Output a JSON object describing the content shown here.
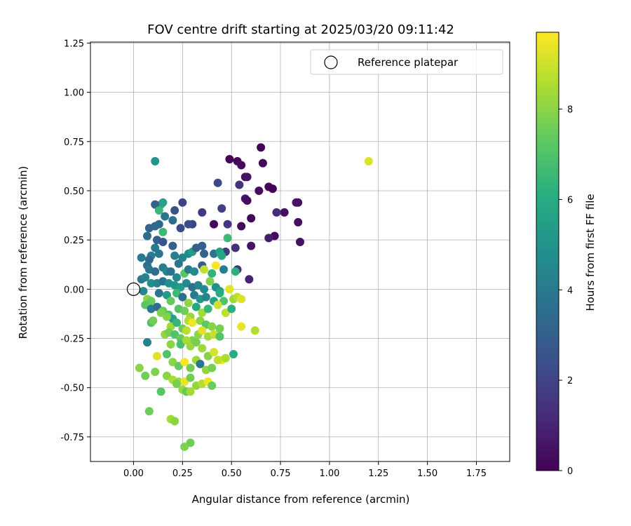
{
  "chart_data": {
    "type": "scatter",
    "title": "FOV centre drift starting at 2025/03/20 09:11:42",
    "xlabel": "Angular distance from reference (arcmin)",
    "ylabel": "Rotation from reference (arcmin)",
    "xlim": [
      -0.22,
      1.92
    ],
    "ylim": [
      -0.875,
      1.255
    ],
    "xticks": [
      "0.00",
      "0.25",
      "0.50",
      "0.75",
      "1.00",
      "1.25",
      "1.50",
      "1.75"
    ],
    "yticks": [
      "-0.75",
      "-0.50",
      "-0.25",
      "0.00",
      "0.25",
      "0.50",
      "0.75",
      "1.00",
      "1.25"
    ],
    "grid": true,
    "legend": {
      "position": "top-right",
      "entries": [
        "Reference platepar"
      ]
    },
    "reference_point": {
      "x": 0.0,
      "y": 0.0
    },
    "colorbar": {
      "label": "Hours from first FF file",
      "colormap": "viridis",
      "range": [
        0,
        9.7
      ],
      "ticks": [
        "0",
        "2",
        "4",
        "6",
        "8"
      ]
    },
    "points": [
      [
        0.49,
        0.66,
        0.1
      ],
      [
        0.53,
        0.65,
        0.2
      ],
      [
        0.55,
        0.63,
        0.3
      ],
      [
        0.65,
        0.72,
        0.1
      ],
      [
        0.66,
        0.64,
        0.2
      ],
      [
        0.57,
        0.57,
        0.4
      ],
      [
        0.58,
        0.57,
        0.5
      ],
      [
        0.64,
        0.5,
        0.3
      ],
      [
        0.69,
        0.52,
        0.2
      ],
      [
        0.71,
        0.51,
        0.1
      ],
      [
        0.57,
        0.46,
        0.6
      ],
      [
        0.58,
        0.45,
        0.3
      ],
      [
        0.77,
        0.39,
        0.4
      ],
      [
        0.73,
        0.39,
        1.2
      ],
      [
        0.83,
        0.44,
        0.7
      ],
      [
        0.84,
        0.44,
        0.5
      ],
      [
        0.84,
        0.34,
        0.4
      ],
      [
        0.85,
        0.24,
        0.5
      ],
      [
        0.72,
        0.27,
        0.3
      ],
      [
        0.69,
        0.26,
        0.8
      ],
      [
        0.6,
        0.36,
        0.2
      ],
      [
        0.55,
        0.32,
        0.3
      ],
      [
        0.41,
        0.33,
        0.2
      ],
      [
        0.48,
        0.33,
        1.5
      ],
      [
        0.45,
        0.41,
        1.8
      ],
      [
        0.43,
        0.54,
        2.2
      ],
      [
        0.54,
        0.53,
        1.4
      ],
      [
        0.52,
        0.21,
        1.3
      ],
      [
        0.6,
        0.22,
        0.6
      ],
      [
        0.47,
        0.19,
        1.7
      ],
      [
        0.59,
        0.05,
        1.0
      ],
      [
        0.53,
        0.1,
        1.4
      ],
      [
        0.35,
        0.39,
        1.6
      ],
      [
        0.3,
        0.33,
        1.9
      ],
      [
        0.28,
        0.33,
        2.3
      ],
      [
        0.25,
        0.44,
        2.0
      ],
      [
        0.21,
        0.4,
        2.5
      ],
      [
        0.24,
        0.31,
        2.2
      ],
      [
        0.2,
        0.35,
        3.6
      ],
      [
        0.14,
        0.43,
        6.0
      ],
      [
        0.15,
        0.44,
        5.7
      ],
      [
        0.11,
        0.43,
        3.0
      ],
      [
        0.11,
        0.65,
        5.0
      ],
      [
        0.13,
        0.4,
        6.5
      ],
      [
        0.16,
        0.37,
        3.8
      ],
      [
        0.13,
        0.33,
        3.2
      ],
      [
        0.08,
        0.31,
        3.1
      ],
      [
        0.11,
        0.32,
        3.3
      ],
      [
        0.15,
        0.29,
        6.6
      ],
      [
        0.12,
        0.25,
        3.0
      ],
      [
        0.07,
        0.27,
        3.4
      ],
      [
        0.15,
        0.24,
        2.6
      ],
      [
        0.11,
        0.21,
        4.0
      ],
      [
        0.09,
        0.17,
        4.2
      ],
      [
        0.04,
        0.16,
        4.0
      ],
      [
        0.08,
        0.15,
        3.3
      ],
      [
        0.13,
        0.18,
        3.8
      ],
      [
        0.2,
        0.22,
        3.0
      ],
      [
        0.21,
        0.17,
        4.2
      ],
      [
        0.23,
        0.13,
        3.7
      ],
      [
        0.25,
        0.16,
        4.4
      ],
      [
        0.28,
        0.18,
        4.6
      ],
      [
        0.3,
        0.19,
        5.4
      ],
      [
        0.35,
        0.22,
        2.9
      ],
      [
        0.32,
        0.21,
        3.0
      ],
      [
        0.36,
        0.18,
        3.1
      ],
      [
        0.41,
        0.18,
        3.7
      ],
      [
        0.44,
        0.19,
        5.6
      ],
      [
        0.45,
        0.17,
        5.8
      ],
      [
        0.48,
        0.26,
        6.6
      ],
      [
        0.07,
        0.12,
        3.6
      ],
      [
        0.08,
        0.1,
        3.9
      ],
      [
        0.11,
        0.09,
        3.5
      ],
      [
        0.15,
        0.11,
        4.1
      ],
      [
        0.17,
        0.09,
        4.3
      ],
      [
        0.19,
        0.09,
        3.6
      ],
      [
        0.22,
        0.06,
        4.5
      ],
      [
        0.26,
        0.08,
        7.2
      ],
      [
        0.28,
        0.1,
        4.0
      ],
      [
        0.31,
        0.09,
        4.7
      ],
      [
        0.35,
        0.12,
        2.8
      ],
      [
        0.36,
        0.1,
        8.8
      ],
      [
        0.4,
        0.08,
        6.3
      ],
      [
        0.42,
        0.12,
        9.6
      ],
      [
        0.46,
        0.1,
        4.1
      ],
      [
        0.52,
        0.09,
        6.2
      ],
      [
        0.04,
        0.05,
        3.9
      ],
      [
        0.06,
        0.06,
        4.3
      ],
      [
        0.09,
        0.03,
        4.8
      ],
      [
        0.12,
        0.03,
        4.4
      ],
      [
        0.15,
        0.04,
        3.7
      ],
      [
        0.18,
        0.03,
        4.9
      ],
      [
        0.21,
        0.02,
        5.1
      ],
      [
        0.24,
        0.01,
        5.3
      ],
      [
        0.27,
        0.03,
        4.6
      ],
      [
        0.3,
        0.01,
        3.6
      ],
      [
        0.33,
        0.02,
        4.3
      ],
      [
        0.36,
        0.0,
        4.6
      ],
      [
        0.39,
        0.04,
        7.8
      ],
      [
        0.42,
        0.01,
        4.8
      ],
      [
        0.44,
        -0.01,
        5.1
      ],
      [
        0.49,
        0.0,
        9.3
      ],
      [
        0.05,
        -0.01,
        4.5
      ],
      [
        0.07,
        -0.05,
        8.0
      ],
      [
        0.09,
        -0.06,
        7.5
      ],
      [
        0.13,
        -0.02,
        3.8
      ],
      [
        0.17,
        -0.03,
        5.3
      ],
      [
        0.19,
        -0.06,
        7.4
      ],
      [
        0.22,
        -0.02,
        6.6
      ],
      [
        0.25,
        -0.04,
        3.6
      ],
      [
        0.28,
        -0.07,
        8.1
      ],
      [
        0.31,
        -0.03,
        4.0
      ],
      [
        0.34,
        -0.05,
        5.1
      ],
      [
        0.37,
        -0.04,
        4.4
      ],
      [
        0.41,
        -0.06,
        5.5
      ],
      [
        0.44,
        -0.02,
        6.0
      ],
      [
        0.46,
        -0.06,
        7.0
      ],
      [
        0.51,
        -0.05,
        8.3
      ],
      [
        0.53,
        -0.04,
        8.7
      ],
      [
        0.55,
        -0.05,
        9.2
      ],
      [
        0.06,
        -0.08,
        7.2
      ],
      [
        0.09,
        -0.1,
        4.0
      ],
      [
        0.12,
        -0.09,
        3.5
      ],
      [
        0.15,
        -0.11,
        7.4
      ],
      [
        0.18,
        -0.13,
        6.8
      ],
      [
        0.2,
        -0.15,
        5.4
      ],
      [
        0.23,
        -0.1,
        7.1
      ],
      [
        0.26,
        -0.11,
        7.6
      ],
      [
        0.29,
        -0.14,
        8.2
      ],
      [
        0.32,
        -0.09,
        5.9
      ],
      [
        0.35,
        -0.12,
        8.4
      ],
      [
        0.38,
        -0.1,
        6.5
      ],
      [
        0.43,
        -0.08,
        9.0
      ],
      [
        0.47,
        -0.12,
        8.8
      ],
      [
        0.5,
        -0.1,
        6.2
      ],
      [
        0.09,
        -0.17,
        7.0
      ],
      [
        0.1,
        -0.16,
        7.6
      ],
      [
        0.14,
        -0.12,
        7.8
      ],
      [
        0.17,
        -0.14,
        7.9
      ],
      [
        0.19,
        -0.19,
        8.3
      ],
      [
        0.22,
        -0.17,
        6.4
      ],
      [
        0.25,
        -0.2,
        7.5
      ],
      [
        0.28,
        -0.16,
        8.6
      ],
      [
        0.3,
        -0.17,
        9.5
      ],
      [
        0.34,
        -0.16,
        8.0
      ],
      [
        0.37,
        -0.18,
        7.3
      ],
      [
        0.4,
        -0.19,
        7.9
      ],
      [
        0.44,
        -0.2,
        7.7
      ],
      [
        0.55,
        -0.19,
        9.4
      ],
      [
        0.62,
        -0.21,
        8.6
      ],
      [
        0.16,
        -0.23,
        8.1
      ],
      [
        0.18,
        -0.22,
        7.7
      ],
      [
        0.21,
        -0.23,
        7.0
      ],
      [
        0.24,
        -0.25,
        7.4
      ],
      [
        0.27,
        -0.21,
        8.7
      ],
      [
        0.3,
        -0.26,
        7.8
      ],
      [
        0.33,
        -0.23,
        8.0
      ],
      [
        0.35,
        -0.21,
        9.3
      ],
      [
        0.38,
        -0.24,
        8.4
      ],
      [
        0.41,
        -0.23,
        8.9
      ],
      [
        0.44,
        -0.24,
        7.1
      ],
      [
        0.07,
        -0.27,
        4.3
      ],
      [
        0.17,
        -0.33,
        7.0
      ],
      [
        0.19,
        -0.28,
        8.0
      ],
      [
        0.24,
        -0.28,
        6.8
      ],
      [
        0.27,
        -0.26,
        8.4
      ],
      [
        0.29,
        -0.29,
        8.2
      ],
      [
        0.32,
        -0.27,
        7.7
      ],
      [
        0.35,
        -0.3,
        8.3
      ],
      [
        0.38,
        -0.34,
        7.9
      ],
      [
        0.41,
        -0.32,
        9.1
      ],
      [
        0.45,
        -0.36,
        9.6
      ],
      [
        0.47,
        -0.35,
        8.5
      ],
      [
        0.51,
        -0.33,
        6.0
      ],
      [
        0.12,
        -0.34,
        9.3
      ],
      [
        0.2,
        -0.37,
        8.0
      ],
      [
        0.23,
        -0.39,
        7.4
      ],
      [
        0.26,
        -0.37,
        9.6
      ],
      [
        0.29,
        -0.4,
        7.6
      ],
      [
        0.32,
        -0.36,
        8.3
      ],
      [
        0.34,
        -0.38,
        3.8
      ],
      [
        0.37,
        -0.41,
        8.1
      ],
      [
        0.4,
        -0.4,
        7.7
      ],
      [
        0.43,
        -0.36,
        8.8
      ],
      [
        0.03,
        -0.4,
        8.0
      ],
      [
        0.06,
        -0.44,
        7.6
      ],
      [
        0.11,
        -0.42,
        7.8
      ],
      [
        0.17,
        -0.44,
        8.0
      ],
      [
        0.2,
        -0.46,
        8.5
      ],
      [
        0.23,
        -0.47,
        8.3
      ],
      [
        0.26,
        -0.47,
        9.4
      ],
      [
        0.29,
        -0.45,
        7.6
      ],
      [
        0.32,
        -0.49,
        8.1
      ],
      [
        0.35,
        -0.48,
        8.6
      ],
      [
        0.38,
        -0.47,
        9.5
      ],
      [
        0.4,
        -0.49,
        7.5
      ],
      [
        0.22,
        -0.48,
        7.7
      ],
      [
        0.25,
        -0.51,
        8.2
      ],
      [
        0.27,
        -0.52,
        7.4
      ],
      [
        0.29,
        -0.52,
        8.4
      ],
      [
        0.14,
        -0.52,
        7.2
      ],
      [
        0.08,
        -0.62,
        7.5
      ],
      [
        0.19,
        -0.66,
        8.4
      ],
      [
        0.21,
        -0.67,
        8.0
      ],
      [
        0.26,
        -0.8,
        7.8
      ],
      [
        0.29,
        -0.78,
        7.6
      ],
      [
        1.2,
        0.65,
        9.2
      ]
    ]
  }
}
